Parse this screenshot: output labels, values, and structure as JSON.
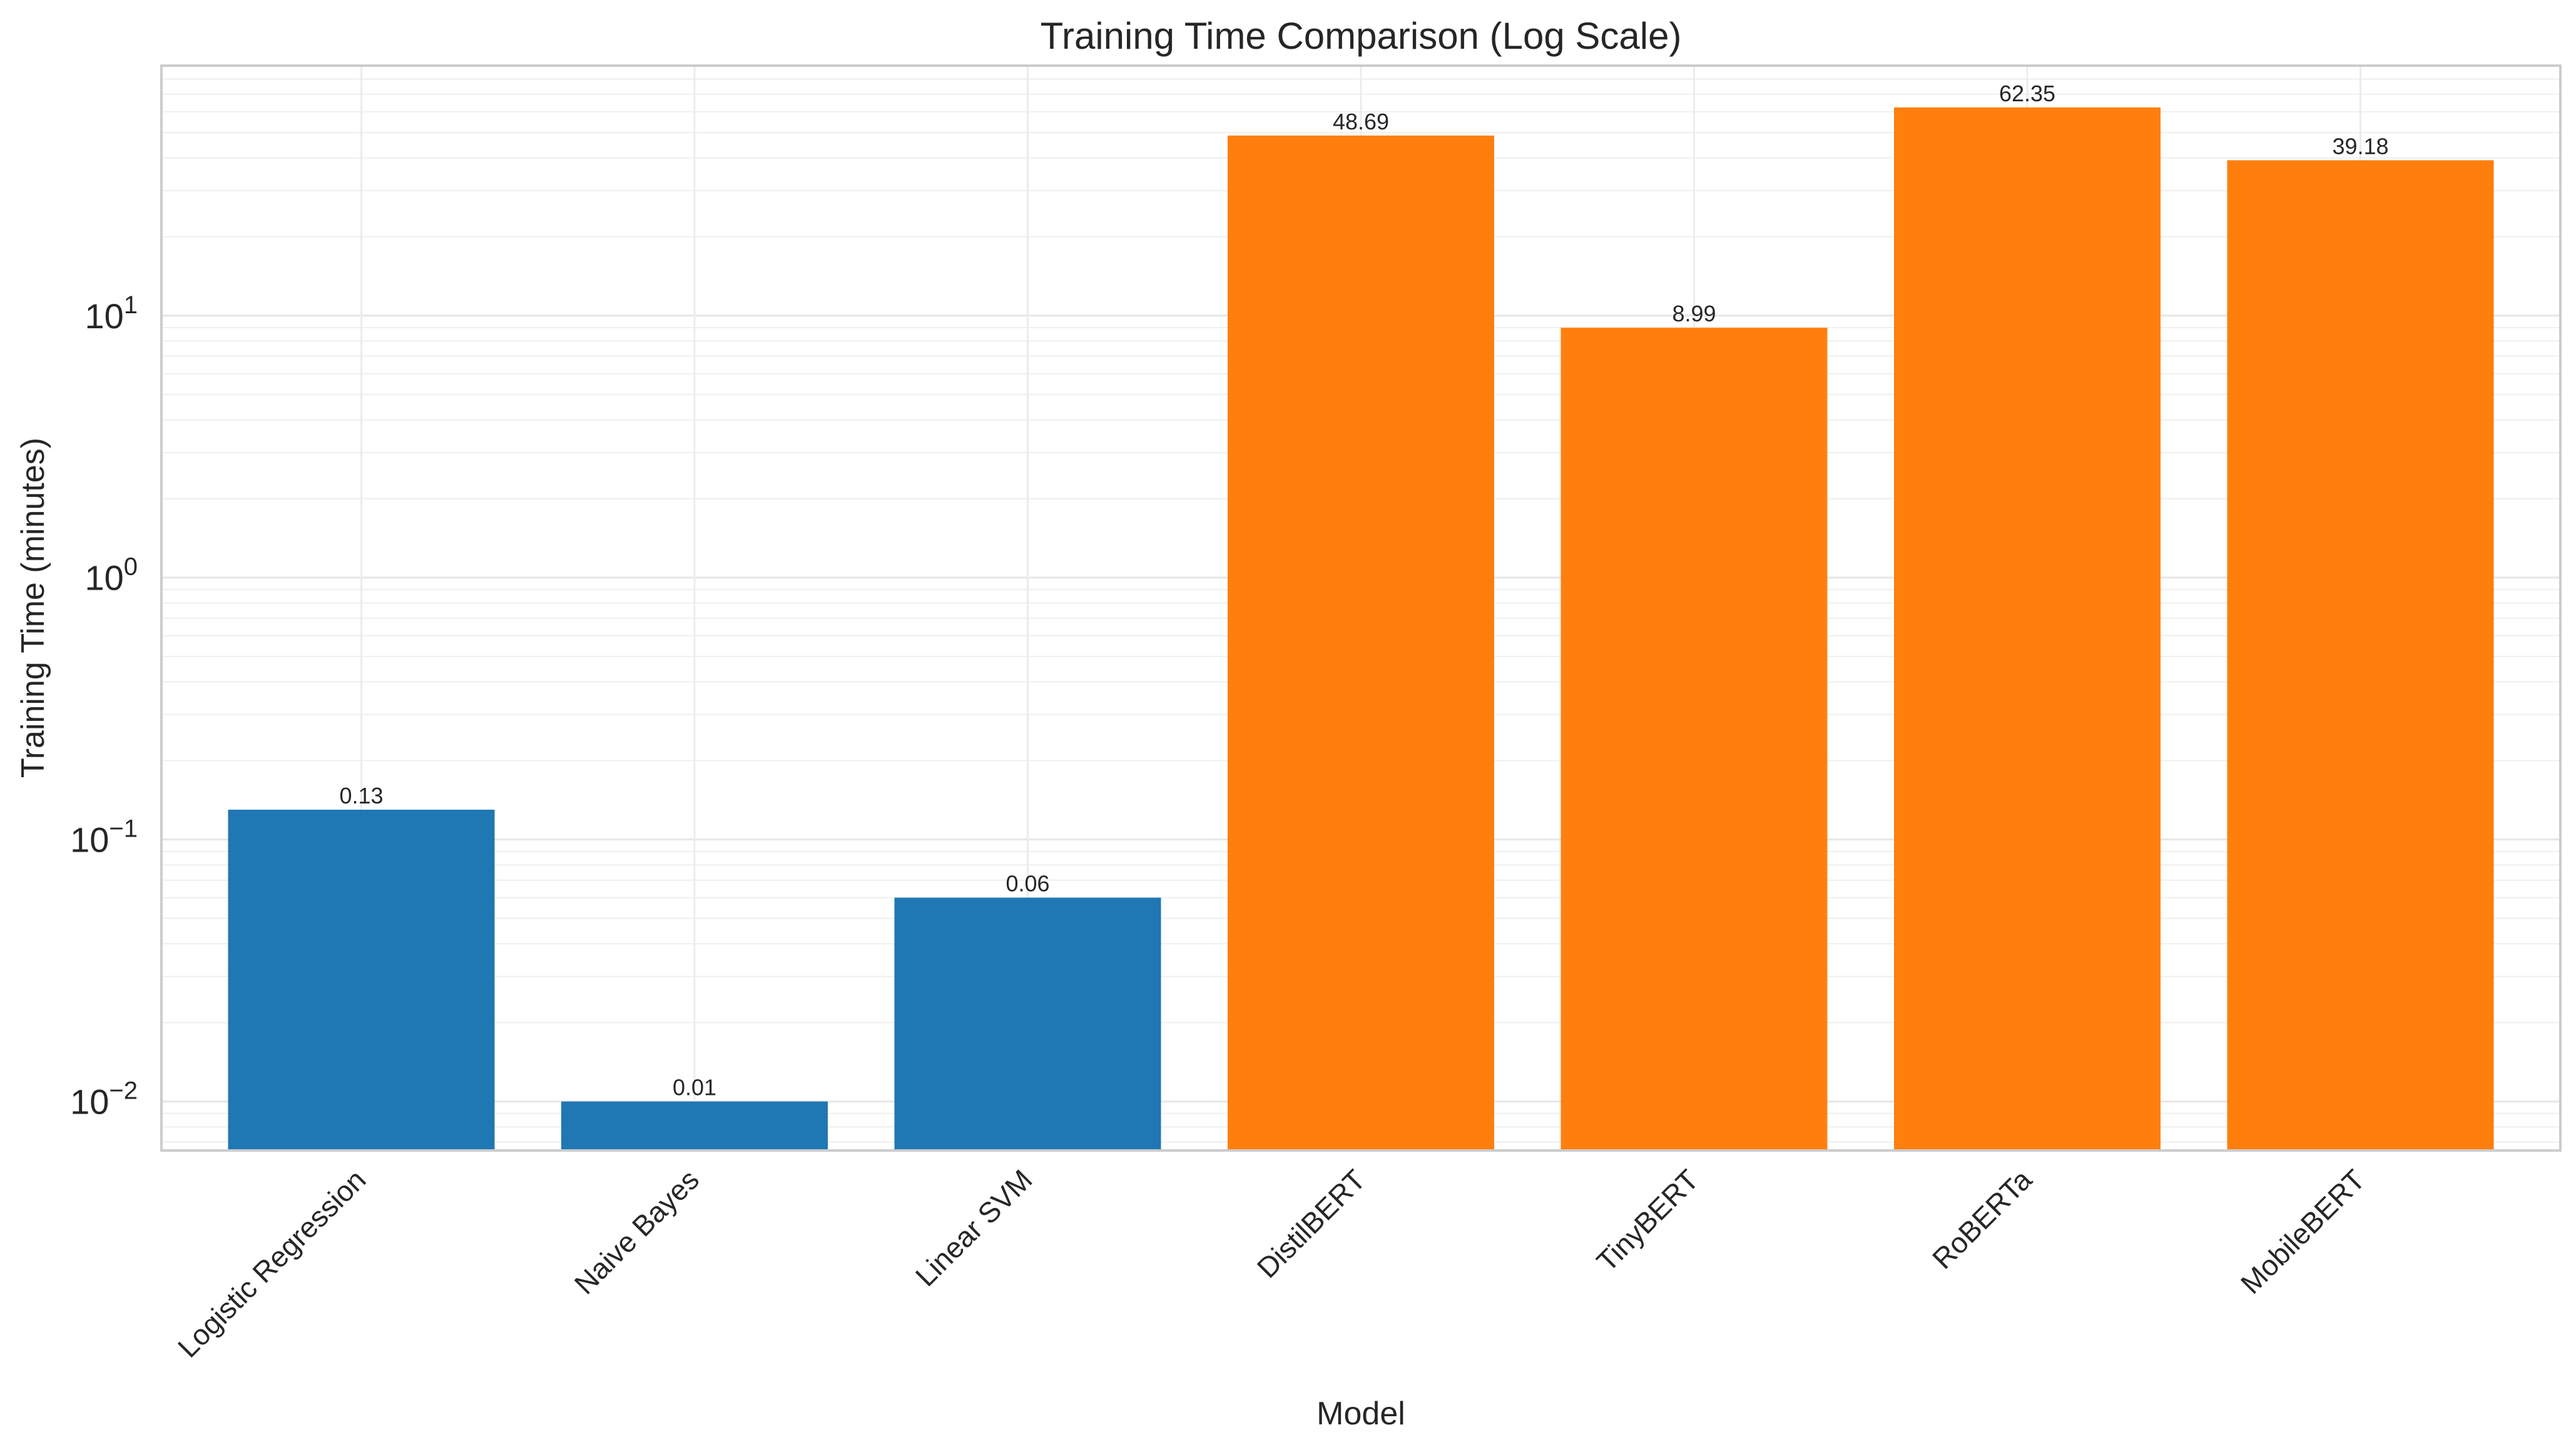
{
  "chart_data": {
    "type": "bar",
    "title": "Training Time Comparison (Log Scale)",
    "xlabel": "Model",
    "ylabel": "Training Time (minutes)",
    "y_scale": "log",
    "ylim": [
      0.0065,
      90
    ],
    "y_major_ticks": [
      {
        "value": 0.01,
        "base": "10",
        "exp": "−2"
      },
      {
        "value": 0.1,
        "base": "10",
        "exp": "−1"
      },
      {
        "value": 1,
        "base": "10",
        "exp": "0"
      },
      {
        "value": 10,
        "base": "10",
        "exp": "1"
      }
    ],
    "grid": true,
    "categories": [
      "Logistic Regression",
      "Naive Bayes",
      "Linear SVM",
      "DistilBERT",
      "TinyBERT",
      "RoBERTa",
      "MobileBERT"
    ],
    "values": [
      0.13,
      0.01,
      0.06,
      48.69,
      8.99,
      62.35,
      39.18
    ],
    "value_labels": [
      "0.13",
      "0.01",
      "0.06",
      "48.69",
      "8.99",
      "62.35",
      "39.18"
    ],
    "bar_colors": [
      "#1f77b4",
      "#1f77b4",
      "#1f77b4",
      "#ff7f0e",
      "#ff7f0e",
      "#ff7f0e",
      "#ff7f0e"
    ]
  }
}
